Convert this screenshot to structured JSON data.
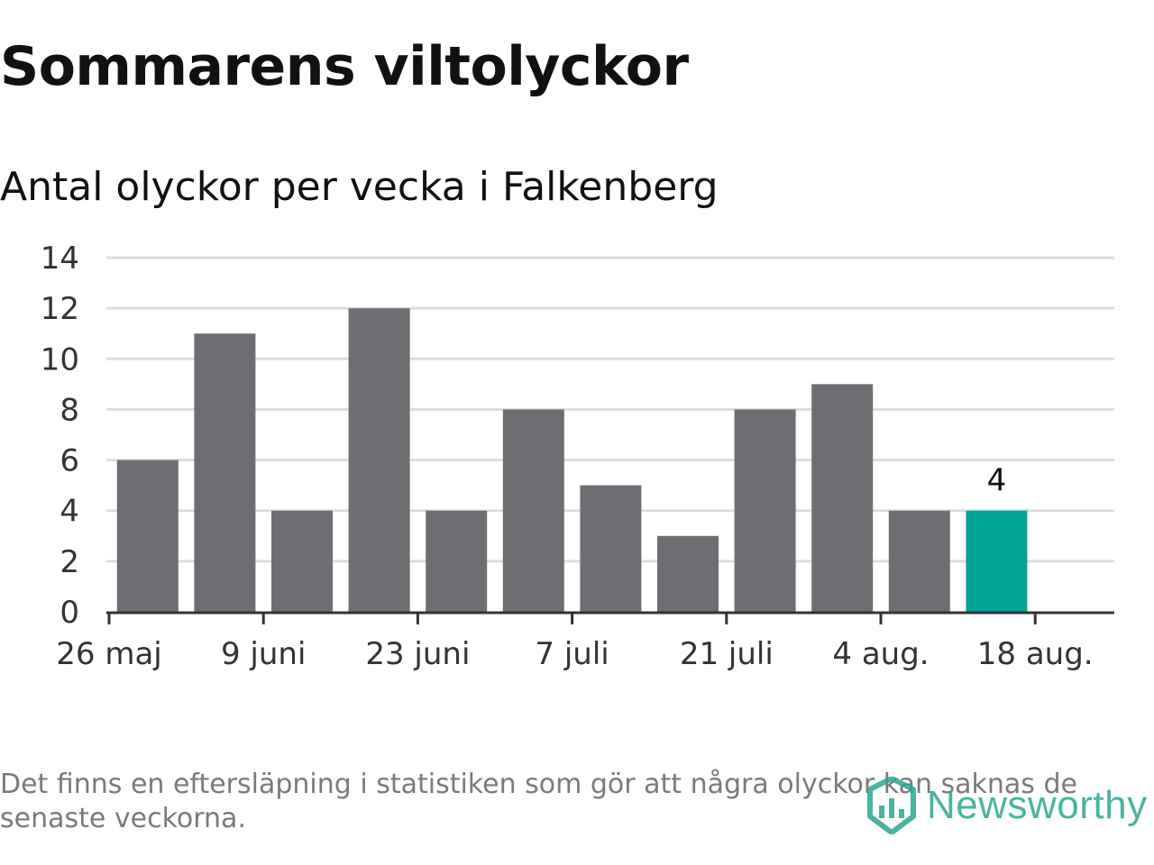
{
  "title": "Sommarens viltolyckor",
  "subtitle": "Antal olyckor per vecka i Falkenberg",
  "footnote": "Det finns en eftersläpning i statistiken som gör att några olyckor kan saknas de senaste veckorna.",
  "brand": {
    "name": "Newsworthy",
    "icon": "newsworthy-logo-icon",
    "color": "#2aa890"
  },
  "chart_data": {
    "type": "bar",
    "title": "Sommarens viltolyckor",
    "subtitle": "Antal olyckor per vecka i Falkenberg",
    "x": [
      "2019-06-02",
      "2019-06-09",
      "2019-06-16",
      "2019-06-23",
      "2019-06-30",
      "2019-07-07",
      "2019-07-14",
      "2019-07-21",
      "2019-07-28",
      "2019-08-04",
      "2019-08-11",
      "2019-08-18"
    ],
    "values": [
      6,
      11,
      4,
      12,
      4,
      8,
      5,
      3,
      8,
      9,
      4,
      4
    ],
    "xticks": [
      "2019-05-26",
      "2019-06-09",
      "2019-06-23",
      "2019-07-07",
      "2019-07-21",
      "2019-08-04",
      "2019-08-18"
    ],
    "xtick_labels": [
      "26 maj",
      "9 juni",
      "23 juni",
      "7 juli",
      "21 juli",
      "4 aug.",
      "18 aug."
    ],
    "ylim": [
      0,
      14
    ],
    "yticks": [
      0,
      2,
      4,
      6,
      8,
      10,
      12,
      14
    ],
    "grid": true,
    "bar_color": "#6e6d72",
    "highlight_color": "#00a597",
    "highlight_index": 11,
    "data_labels": [
      {
        "index": 11,
        "text": "4"
      }
    ]
  }
}
